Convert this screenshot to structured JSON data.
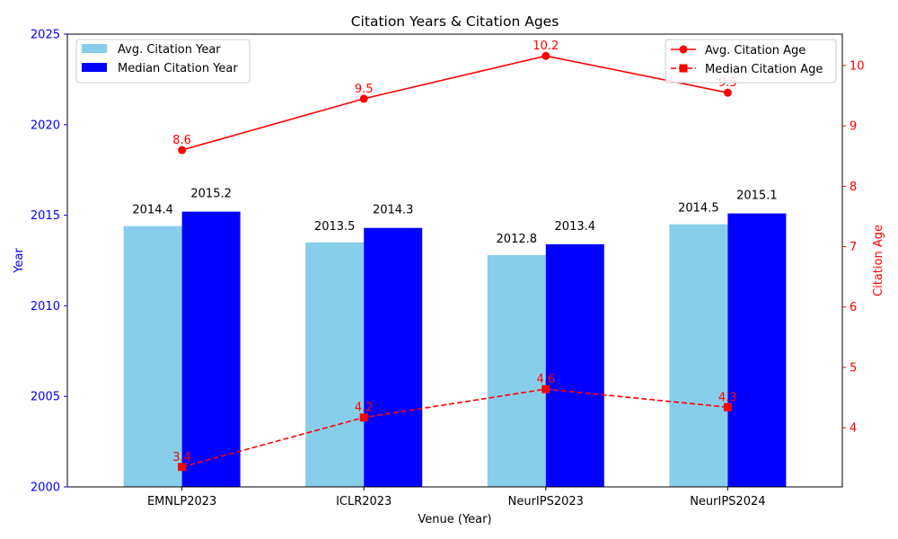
{
  "chart_data": {
    "type": "bar",
    "title": "Citation Years & Citation Ages",
    "xlabel": "Venue (Year)",
    "ylabel": "Year",
    "y2label": "Citation Age",
    "categories": [
      "EMNLP2023",
      "ICLR2023",
      "NeurIPS2023",
      "NeurIPS2024"
    ],
    "ylim": [
      2000,
      2025
    ],
    "yticks": [
      2000,
      2005,
      2010,
      2015,
      2020,
      2025
    ],
    "y2lim": [
      3.02,
      10.52
    ],
    "y2ticks": [
      4,
      5,
      6,
      7,
      8,
      9,
      10
    ],
    "bar_series": [
      {
        "name": "Avg. Citation Year",
        "values": [
          2014.4,
          2013.5,
          2012.8,
          2014.5
        ],
        "labels": [
          "2014.4",
          "2013.5",
          "2012.8",
          "2014.5"
        ],
        "color": "#87ceeb"
      },
      {
        "name": "Median Citation Year",
        "values": [
          2015.2,
          2014.3,
          2013.4,
          2015.1
        ],
        "labels": [
          "2015.2",
          "2014.3",
          "2013.4",
          "2015.1"
        ],
        "color": "#0000ff"
      }
    ],
    "line_series": [
      {
        "name": "Avg. Citation Age",
        "values": [
          8.6,
          9.45,
          10.16,
          9.55
        ],
        "labels": [
          "8.6",
          "9.5",
          "10.2",
          "9.5"
        ],
        "color": "#ff0000",
        "style": "solid",
        "marker": "circle"
      },
      {
        "name": "Median Citation Age",
        "values": [
          3.35,
          4.17,
          4.64,
          4.34
        ],
        "labels": [
          "3.4",
          "4.2",
          "4.6",
          "4.3"
        ],
        "color": "#ff0000",
        "style": "dashed",
        "marker": "square"
      }
    ],
    "legend_left": "upper-left",
    "legend_right": "upper-right",
    "grid": false
  }
}
